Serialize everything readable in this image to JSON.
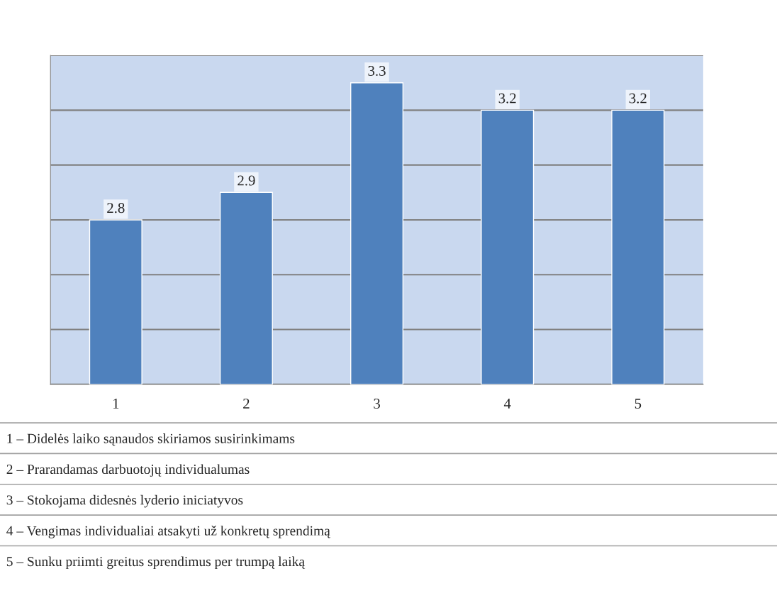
{
  "chart_data": {
    "type": "bar",
    "categories": [
      "1",
      "2",
      "3",
      "4",
      "5"
    ],
    "values": [
      2.8,
      2.9,
      3.3,
      3.2,
      3.2
    ],
    "color": "#4f81bd",
    "ylim": [
      2.2,
      3.4
    ],
    "grid": "y",
    "tick_labels": "x",
    "data_labels": true,
    "legend": false,
    "annotations": [
      "1 – Didelės laiko sąnaudos skiriamos susirinkimams",
      "2 – Prarandamas darbuotojų individualumas",
      "3 – Stokojama didesnės lyderio iniciatyvos",
      "4 – Vengimas individualiai atsakyti už konkretų sprendimą",
      "5 – Sunku priimti greitus sprendimus per trumpą laiką"
    ]
  }
}
